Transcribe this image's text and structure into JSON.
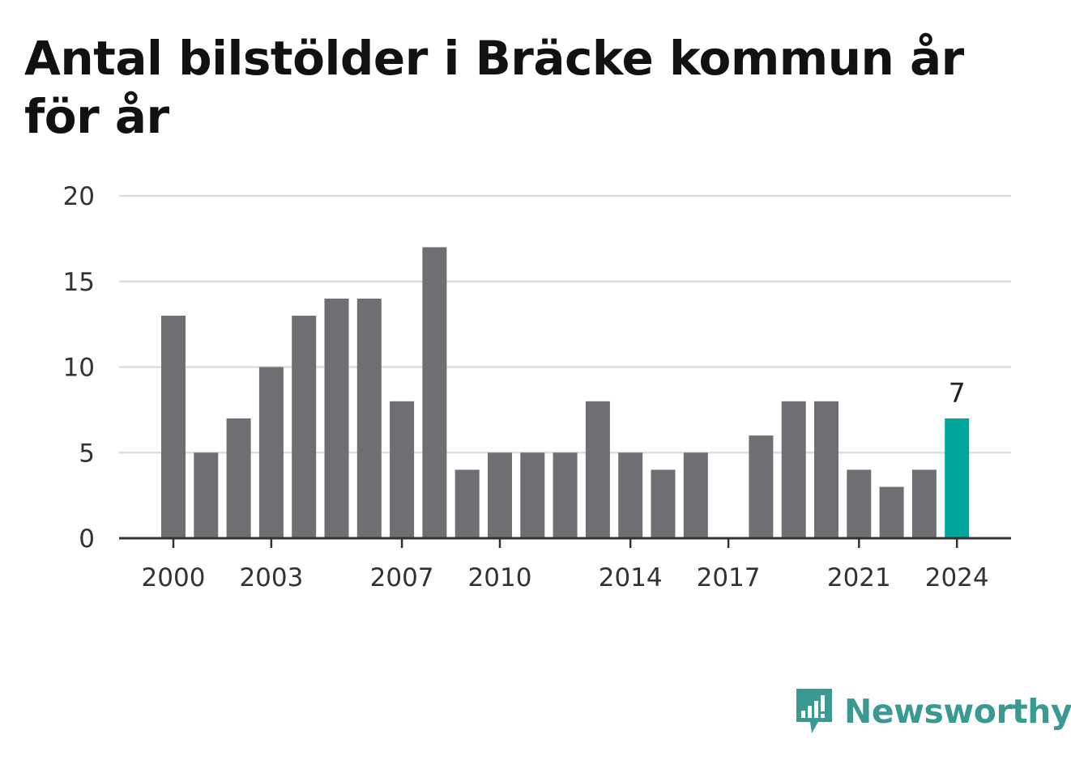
{
  "title": "Antal bilstölder i Bräcke kommun år för år",
  "brand": {
    "name": "Newsworthy",
    "icon": "newsworthy-logo-icon",
    "color": "#3a9a93"
  },
  "colors": {
    "bar": "#6f6e73",
    "highlight": "#00a69c",
    "grid": "#dddddd",
    "axis": "#333333"
  },
  "chart_data": {
    "type": "bar",
    "title": "Antal bilstölder i Bräcke kommun år för år",
    "xlabel": "",
    "ylabel": "",
    "x": [
      2000,
      2001,
      2002,
      2003,
      2004,
      2005,
      2006,
      2007,
      2008,
      2009,
      2010,
      2011,
      2012,
      2013,
      2014,
      2015,
      2016,
      2017,
      2018,
      2019,
      2020,
      2021,
      2022,
      2023,
      2024
    ],
    "values": [
      13,
      5,
      7,
      10,
      13,
      14,
      14,
      8,
      17,
      4,
      5,
      5,
      5,
      8,
      5,
      4,
      5,
      0,
      6,
      8,
      8,
      4,
      3,
      4,
      7
    ],
    "ylim": [
      0,
      20
    ],
    "yticks": [
      0,
      5,
      10,
      15,
      20
    ],
    "xticks": [
      2000,
      2003,
      2007,
      2010,
      2014,
      2017,
      2021,
      2024
    ],
    "highlight": {
      "x": 2024,
      "label": "7"
    },
    "grid": true,
    "legend": "none"
  }
}
